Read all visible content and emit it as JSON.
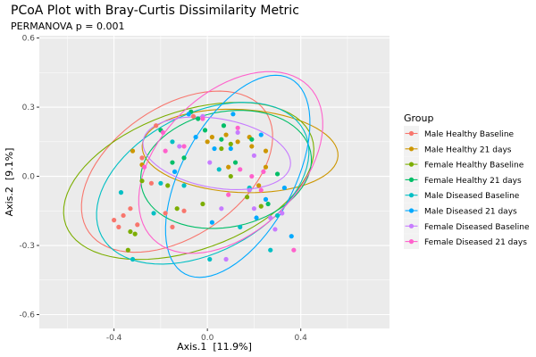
{
  "chart_data": {
    "type": "scatter",
    "title": "PCoA Plot with Bray-Curtis Dissimilarity Metric",
    "subtitle": "PERMANOVA p = 0.001",
    "xlabel": "Axis.1  [11.9%]",
    "ylabel": "Axis.2  [9.1%]",
    "xlim": [
      -0.72,
      0.78
    ],
    "ylim": [
      -0.66,
      0.61
    ],
    "x_ticks": [
      -0.4,
      0.0,
      0.4
    ],
    "x_tick_labels": [
      "-0.4",
      "0.0",
      "0.4"
    ],
    "y_ticks": [
      -0.6,
      -0.3,
      0.0,
      0.3,
      0.6
    ],
    "y_tick_labels": [
      "-0.6",
      "-0.3",
      "0.0",
      "0.3",
      "0.6"
    ],
    "grid": true,
    "panel_background": "#ebebeb",
    "legend_title": "Group",
    "legend_position": "right",
    "series": [
      {
        "name": "Male Healthy Baseline",
        "color": "#F8766D",
        "ellipse": {
          "cx": -0.13,
          "cy": 0.02,
          "rx": 0.46,
          "ry": 0.28,
          "rotation_deg": 35
        },
        "points": [
          [
            -0.4,
            -0.19
          ],
          [
            -0.36,
            -0.17
          ],
          [
            -0.33,
            -0.14
          ],
          [
            -0.38,
            -0.22
          ],
          [
            -0.28,
            0.08
          ],
          [
            -0.22,
            0.22
          ],
          [
            -0.18,
            -0.16
          ],
          [
            -0.1,
            -0.15
          ],
          [
            -0.06,
            0.26
          ],
          [
            -0.15,
            -0.22
          ],
          [
            -0.24,
            -0.03
          ],
          [
            -0.3,
            -0.21
          ]
        ]
      },
      {
        "name": "Male Healthy 21 days",
        "color": "#CD9600",
        "ellipse": {
          "cx": 0.14,
          "cy": 0.11,
          "rx": 0.42,
          "ry": 0.18,
          "rotation_deg": -3
        },
        "points": [
          [
            -0.32,
            0.11
          ],
          [
            -0.28,
            0.05
          ],
          [
            0.02,
            0.17
          ],
          [
            0.08,
            0.18
          ],
          [
            0.13,
            0.15
          ],
          [
            0.18,
            0.17
          ],
          [
            0.22,
            -0.04
          ],
          [
            0.25,
            0.11
          ],
          [
            0.19,
            0.13
          ],
          [
            0.0,
            0.15
          ],
          [
            0.25,
            0.04
          ],
          [
            0.09,
            0.04
          ]
        ]
      },
      {
        "name": "Female Healthy Baseline",
        "color": "#7CAE00",
        "ellipse": {
          "cx": -0.08,
          "cy": -0.02,
          "rx": 0.56,
          "ry": 0.3,
          "rotation_deg": 20
        },
        "points": [
          [
            -0.33,
            -0.24
          ],
          [
            -0.31,
            -0.25
          ],
          [
            -0.34,
            -0.32
          ],
          [
            -0.17,
            -0.04
          ],
          [
            -0.13,
            -0.14
          ],
          [
            -0.02,
            -0.12
          ],
          [
            0.06,
            0.12
          ],
          [
            0.1,
            0.14
          ],
          [
            0.17,
            -0.09
          ],
          [
            0.23,
            -0.13
          ],
          [
            0.1,
            0.0
          ],
          [
            -0.28,
            -0.02
          ]
        ]
      },
      {
        "name": "Female Healthy 21 days",
        "color": "#00BE67",
        "ellipse": {
          "cx": 0.08,
          "cy": 0.03,
          "rx": 0.37,
          "ry": 0.25,
          "rotation_deg": 12
        },
        "points": [
          [
            -0.2,
            0.2
          ],
          [
            -0.07,
            0.28
          ],
          [
            -0.04,
            0.25
          ],
          [
            -0.1,
            0.08
          ],
          [
            -0.15,
            0.06
          ],
          [
            0.06,
            0.16
          ],
          [
            0.19,
            0.16
          ],
          [
            0.3,
            0.01
          ],
          [
            0.26,
            -0.12
          ],
          [
            0.07,
            0.22
          ],
          [
            -0.01,
            0.2
          ],
          [
            0.12,
            0.06
          ]
        ]
      },
      {
        "name": "Male Diseased Baseline",
        "color": "#00BFC4",
        "ellipse": {
          "cx": -0.02,
          "cy": -0.03,
          "rx": 0.49,
          "ry": 0.3,
          "rotation_deg": 28
        },
        "points": [
          [
            -0.37,
            -0.07
          ],
          [
            -0.32,
            -0.36
          ],
          [
            -0.23,
            -0.16
          ],
          [
            -0.2,
            -0.03
          ],
          [
            -0.15,
            0.15
          ],
          [
            -0.1,
            -0.04
          ],
          [
            0.01,
            -0.36
          ],
          [
            0.14,
            -0.22
          ],
          [
            0.27,
            -0.32
          ],
          [
            0.3,
            -0.17
          ],
          [
            0.18,
            -0.05
          ],
          [
            0.05,
            0.03
          ]
        ]
      },
      {
        "name": "Male Diseased 21 days",
        "color": "#00A9FF",
        "ellipse": {
          "cx": 0.13,
          "cy": 0.0,
          "rx": 0.48,
          "ry": 0.24,
          "rotation_deg": 62
        },
        "points": [
          [
            -0.08,
            0.27
          ],
          [
            -0.05,
            0.17
          ],
          [
            0.03,
            0.12
          ],
          [
            0.1,
            0.12
          ],
          [
            0.11,
            0.27
          ],
          [
            0.21,
            -0.18
          ],
          [
            0.25,
            -0.1
          ],
          [
            0.33,
            -0.05
          ],
          [
            0.36,
            -0.26
          ],
          [
            -0.14,
            0.02
          ],
          [
            0.02,
            -0.2
          ],
          [
            0.23,
            0.18
          ]
        ]
      },
      {
        "name": "Female Diseased Baseline",
        "color": "#C77CFF",
        "ellipse": {
          "cx": 0.04,
          "cy": 0.1,
          "rx": 0.32,
          "ry": 0.15,
          "rotation_deg": -10
        },
        "points": [
          [
            -0.02,
            0.26
          ],
          [
            0.01,
            0.06
          ],
          [
            -0.12,
            0.13
          ],
          [
            0.06,
            -0.14
          ],
          [
            0.18,
            -0.06
          ],
          [
            0.13,
            0.19
          ],
          [
            0.2,
            0.09
          ],
          [
            0.2,
            -0.14
          ],
          [
            0.08,
            -0.36
          ],
          [
            0.32,
            -0.16
          ],
          [
            0.29,
            -0.23
          ],
          [
            0.27,
            -0.18
          ]
        ]
      },
      {
        "name": "Female Diseased 21 days",
        "color": "#FF61CC",
        "ellipse": {
          "cx": 0.1,
          "cy": 0.06,
          "rx": 0.47,
          "ry": 0.3,
          "rotation_deg": 45
        },
        "points": [
          [
            -0.27,
            0.04
          ],
          [
            -0.19,
            0.19
          ],
          [
            -0.1,
            0.13
          ],
          [
            -0.02,
            0.25
          ],
          [
            0.14,
            0.03
          ],
          [
            0.19,
            0.0
          ],
          [
            0.23,
            -0.06
          ],
          [
            0.24,
            0.02
          ],
          [
            0.13,
            0.21
          ],
          [
            0.37,
            -0.32
          ],
          [
            0.09,
            -0.08
          ],
          [
            -0.18,
            0.11
          ]
        ]
      }
    ]
  }
}
